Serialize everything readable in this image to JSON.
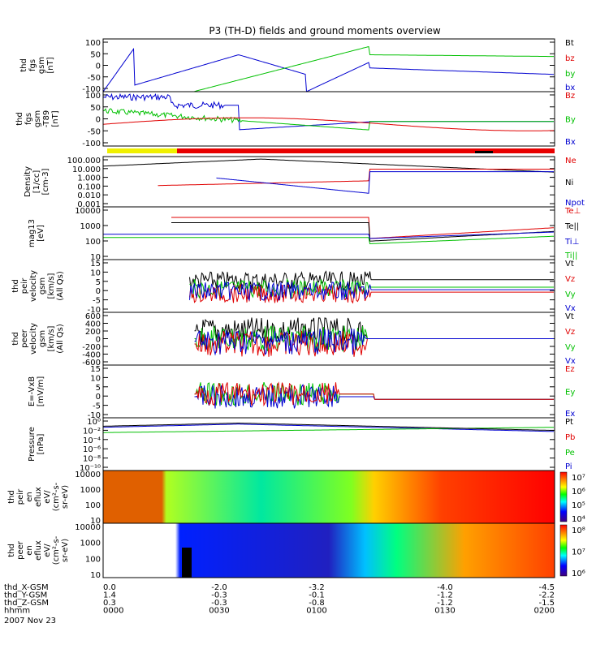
{
  "title": "P3 (TH-D) fields and ground moments overview",
  "chart_data": {
    "type": "line",
    "panels": [
      {
        "id": "fgs",
        "ylabel": [
          "thd",
          "fgs",
          "gsm",
          "[nT]"
        ],
        "ticks": [
          "100",
          "50",
          "0",
          "-50",
          "-100"
        ],
        "legend": [
          {
            "name": "Bt",
            "color": "#000000"
          },
          {
            "name": "bz",
            "color": "#e00000"
          },
          {
            "name": "by",
            "color": "#00c000"
          },
          {
            "name": "bx",
            "color": "#0000d0"
          }
        ]
      },
      {
        "id": "fgs_t89",
        "ylabel": [
          "thd",
          "fgs",
          "gsm",
          "-T89",
          "[nT]"
        ],
        "ticks": [
          "100",
          "50",
          "0",
          "-50",
          "-100"
        ],
        "legend": [
          {
            "name": "Bz",
            "color": "#e00000"
          },
          {
            "name": "By",
            "color": "#00c000"
          },
          {
            "name": "Bx",
            "color": "#0000d0"
          }
        ]
      },
      {
        "id": "density",
        "ylabel": [
          "Density",
          "[1/cc]",
          "[cm-3]"
        ],
        "ticks": [
          "100.000",
          "10.000",
          "1.000",
          "0.100",
          "0.010",
          "0.001"
        ],
        "legend": [
          {
            "name": "Ne",
            "color": "#e00000"
          },
          {
            "name": "Ni",
            "color": "#000000"
          },
          {
            "name": "Npot",
            "color": "#0000d0"
          }
        ]
      },
      {
        "id": "temp",
        "ylabel": [
          "mag13",
          "[eV]"
        ],
        "ticks": [
          "10000",
          "1000",
          "100",
          "10"
        ],
        "legend": [
          {
            "name": "Te⊥",
            "color": "#e00000"
          },
          {
            "name": "Te||",
            "color": "#000000"
          },
          {
            "name": "Ti⊥",
            "color": "#0000d0"
          },
          {
            "name": "Ti||",
            "color": "#00c000"
          }
        ]
      },
      {
        "id": "peir_v",
        "ylabel": [
          "thd",
          "peir",
          "velocity",
          "gsm",
          "[km/s]",
          "(All Qs)"
        ],
        "ticks": [
          "15",
          "10",
          "5",
          "0",
          "-5",
          "-10"
        ],
        "legend": [
          {
            "name": "Vt",
            "color": "#000000"
          },
          {
            "name": "Vz",
            "color": "#e00000"
          },
          {
            "name": "Vy",
            "color": "#00c000"
          },
          {
            "name": "Vx",
            "color": "#0000d0"
          }
        ]
      },
      {
        "id": "peer_v",
        "ylabel": [
          "thd",
          "peer",
          "velocity",
          "gsm",
          "[km/s]",
          "(All Qs)"
        ],
        "ticks": [
          "600",
          "400",
          "200",
          "0",
          "-200",
          "-400",
          "-600"
        ],
        "legend": [
          {
            "name": "Vt",
            "color": "#000000"
          },
          {
            "name": "Vz",
            "color": "#e00000"
          },
          {
            "name": "Vy",
            "color": "#00c000"
          },
          {
            "name": "Vx",
            "color": "#0000d0"
          }
        ]
      },
      {
        "id": "efield",
        "ylabel": [
          "E=-VxB",
          "[mV/m]"
        ],
        "ticks": [
          "15",
          "10",
          "5",
          "0",
          "-5",
          "-10"
        ],
        "legend": [
          {
            "name": "Ez",
            "color": "#e00000"
          },
          {
            "name": "Ey",
            "color": "#00c000"
          },
          {
            "name": "Ex",
            "color": "#0000d0"
          }
        ]
      },
      {
        "id": "pressure",
        "ylabel": [
          "Pressure",
          "[nPa]"
        ],
        "ticks": [
          "10⁰",
          "10⁻²",
          "10⁻⁴",
          "10⁻⁶",
          "10⁻⁸",
          "10⁻¹⁰"
        ],
        "legend": [
          {
            "name": "Pt",
            "color": "#000000"
          },
          {
            "name": "Pb",
            "color": "#e00000"
          },
          {
            "name": "Pe",
            "color": "#00c000"
          },
          {
            "name": "Pi",
            "color": "#0000d0"
          }
        ]
      },
      {
        "id": "peir_en",
        "ylabel": [
          "thd",
          "peir",
          "en",
          "eflux",
          "eV/",
          "(cm²-s-",
          "sr-eV)"
        ],
        "ticks": [
          "10000",
          "1000",
          "100",
          "10"
        ],
        "colorbar": [
          "10⁷",
          "10⁶",
          "10⁵",
          "10⁴"
        ]
      },
      {
        "id": "peer_en",
        "ylabel": [
          "thd",
          "peer",
          "en",
          "eflux",
          "eV/",
          "(cm²-s-",
          "sr-eV)"
        ],
        "ticks": [
          "10000",
          "1000",
          "100",
          "10"
        ],
        "colorbar": [
          "10⁸",
          "10⁷",
          "10⁶"
        ]
      }
    ],
    "x_axis": {
      "rows": [
        {
          "label": "thd_X-GSM",
          "values": [
            "0.0",
            "-2.0",
            "-3.2",
            "-4.0",
            "-4.5"
          ]
        },
        {
          "label": "thd_Y-GSM",
          "values": [
            "1.4",
            "-0.3",
            "-0.1",
            "-1.2",
            "-2.2"
          ]
        },
        {
          "label": "thd_Z-GSM",
          "values": [
            "0.3",
            "-0.3",
            "-0.8",
            "-1.2",
            "-1.5"
          ]
        },
        {
          "label": "hhmm",
          "values": [
            "0000",
            "0030",
            "0100",
            "0130",
            "0200"
          ]
        }
      ],
      "date": "2007 Nov 23"
    }
  }
}
